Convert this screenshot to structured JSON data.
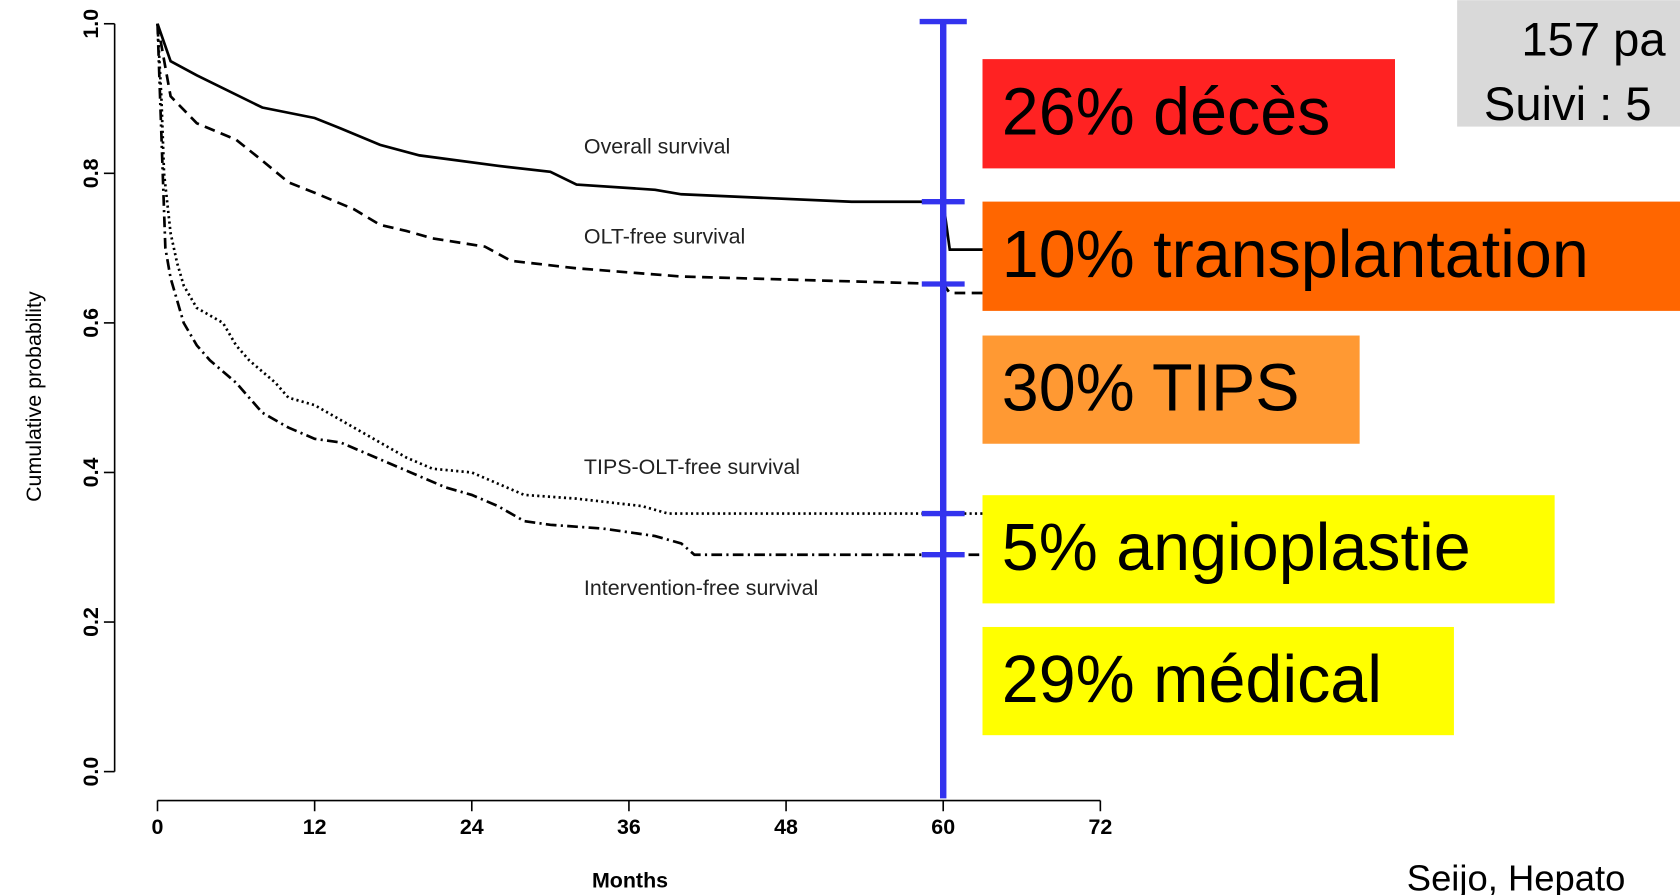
{
  "chart_data": {
    "type": "line",
    "xlabel": "Months",
    "ylabel": "Cumulative probability",
    "xlim": [
      0,
      72
    ],
    "xticks": [
      0,
      12,
      24,
      36,
      48,
      60,
      72
    ],
    "ylim": [
      0,
      1
    ],
    "yticks": [
      {
        "value": 0,
        "label": "0.0"
      },
      0.2,
      0.4,
      0.6,
      0.8,
      {
        "value": 1,
        "label": "1.0"
      }
    ],
    "series": [
      {
        "name": "Overall survival",
        "color": "#000000",
        "style": "solid",
        "x": [
          0,
          1,
          3,
          8,
          12,
          14,
          17,
          20,
          26,
          30,
          32,
          38,
          40,
          53,
          60,
          60.5,
          63
        ],
        "values": [
          1.0,
          0.95,
          0.931,
          0.888,
          0.874,
          0.86,
          0.838,
          0.824,
          0.81,
          0.802,
          0.785,
          0.778,
          0.772,
          0.762,
          0.762,
          0.698,
          0.698
        ]
      },
      {
        "name": "OLT-free survival",
        "color": "#000000",
        "style": "dashed",
        "x": [
          0,
          1,
          3,
          6,
          8,
          10,
          12,
          15,
          17,
          19,
          21,
          25,
          27,
          32,
          40,
          60,
          60.5,
          63
        ],
        "values": [
          1.0,
          0.903,
          0.867,
          0.845,
          0.817,
          0.788,
          0.774,
          0.752,
          0.731,
          0.723,
          0.713,
          0.702,
          0.683,
          0.673,
          0.662,
          0.652,
          0.64,
          0.64
        ]
      },
      {
        "name": "TIPS-OLT-free survival",
        "color": "#000000",
        "style": "dotted",
        "x": [
          0,
          0.3,
          0.5,
          1,
          1.5,
          2,
          3,
          5,
          6,
          7,
          9,
          10,
          12,
          13,
          15,
          17,
          19,
          21,
          24,
          26,
          28,
          32,
          37,
          39,
          60,
          63
        ],
        "values": [
          1.0,
          0.9,
          0.8,
          0.72,
          0.68,
          0.65,
          0.62,
          0.6,
          0.57,
          0.55,
          0.52,
          0.5,
          0.49,
          0.48,
          0.46,
          0.44,
          0.42,
          0.405,
          0.4,
          0.385,
          0.37,
          0.365,
          0.355,
          0.345,
          0.345,
          0.345
        ]
      },
      {
        "name": "Intervention-free survival",
        "color": "#000000",
        "style": "dashdot",
        "x": [
          0,
          0.3,
          0.6,
          1,
          2,
          3,
          4,
          6,
          8,
          10,
          12,
          14,
          16,
          18,
          20,
          22,
          24,
          26,
          28,
          30,
          34,
          38,
          40,
          41,
          60,
          63
        ],
        "values": [
          1.0,
          0.85,
          0.7,
          0.66,
          0.6,
          0.57,
          0.55,
          0.52,
          0.48,
          0.46,
          0.445,
          0.44,
          0.425,
          0.41,
          0.395,
          0.38,
          0.37,
          0.355,
          0.335,
          0.33,
          0.325,
          0.315,
          0.305,
          0.29,
          0.29,
          0.29
        ]
      }
    ],
    "marker_line": {
      "x": 60,
      "color": "#3333ee"
    },
    "annotations": [
      {
        "text": "26% décès",
        "color": "#ff2222"
      },
      {
        "text": "10% transplantation",
        "color": "#ff6600"
      },
      {
        "text": "30% TIPS",
        "color": "#ff9933"
      },
      {
        "text": "5% angioplastie",
        "color": "#ffff00"
      },
      {
        "text": "29% médical",
        "color": "#ffff00"
      }
    ],
    "info_box": {
      "lines": [
        "157 pa",
        "Suivi : 5"
      ],
      "color": "#d9d9d9"
    },
    "source": "Seijo, Hepato"
  }
}
